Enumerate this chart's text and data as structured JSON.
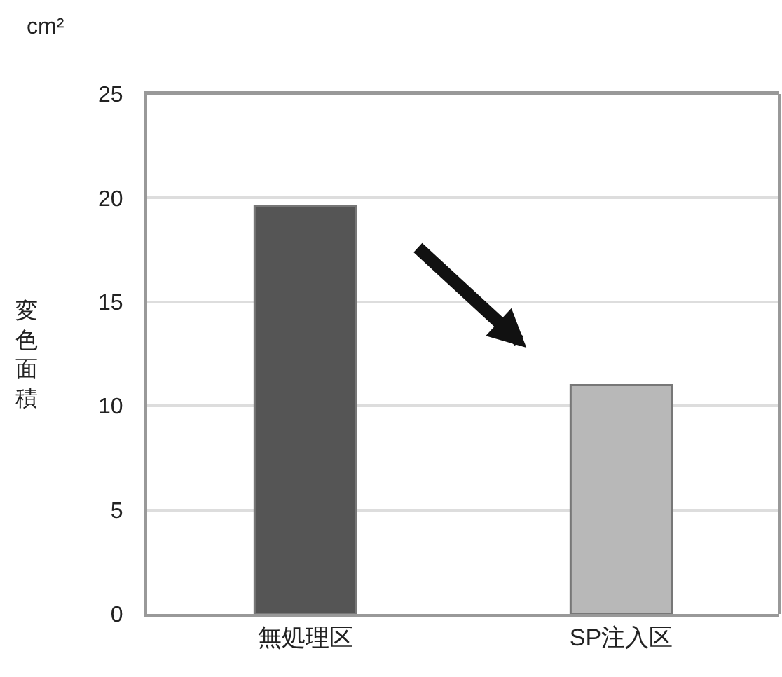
{
  "chart_data": {
    "type": "bar",
    "ylabel": "変色面積",
    "annotations": [
      "cm²"
    ],
    "categories": [
      "無処理区",
      "SP注入区"
    ],
    "values": [
      19.6,
      11.0
    ],
    "colors": [
      "#555555",
      "#b8b8b8"
    ],
    "ylim": [
      0,
      25
    ],
    "yticks": [
      0,
      5,
      10,
      15,
      20,
      25
    ],
    "grid": "y"
  }
}
